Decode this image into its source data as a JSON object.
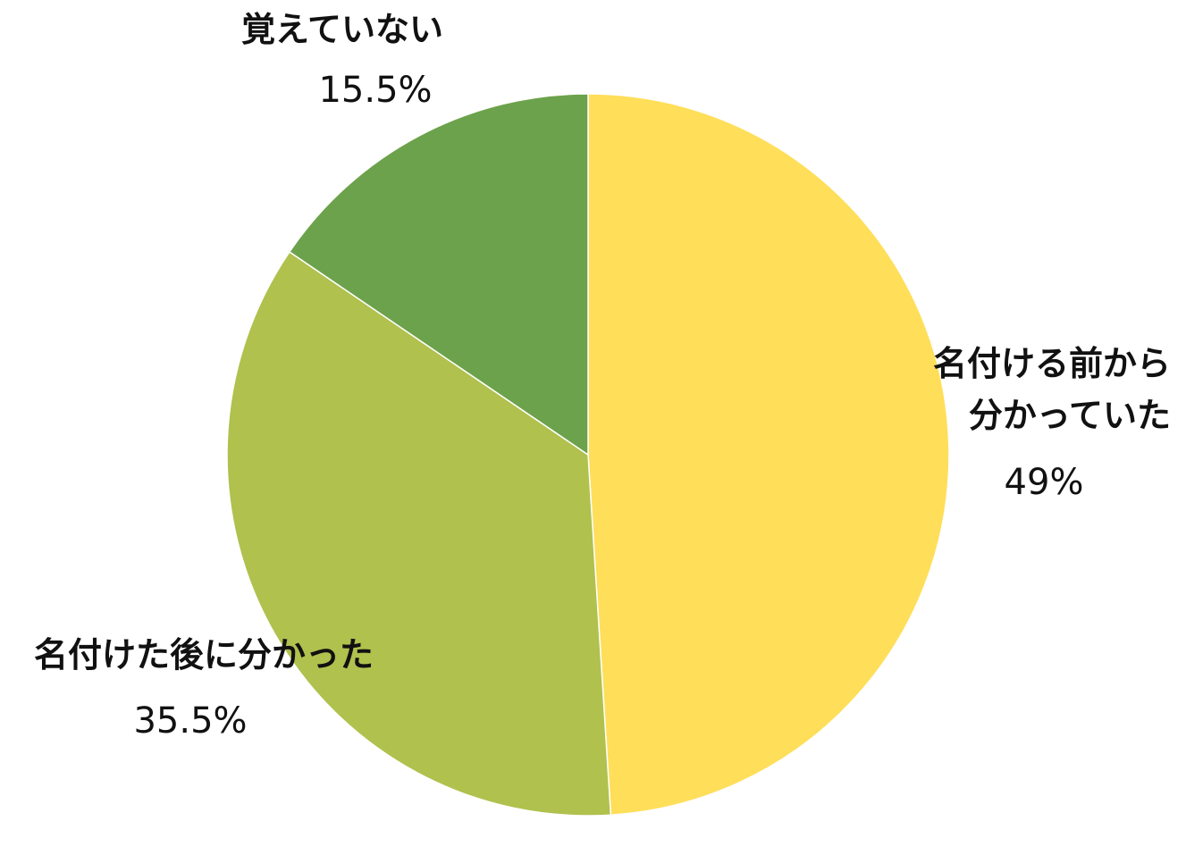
{
  "chart_data": {
    "type": "pie",
    "start_angle": "12 o'clock",
    "direction": "clockwise",
    "slices": [
      {
        "label_lines": [
          "名付ける前から",
          "分かっていた"
        ],
        "value": 49,
        "value_text": "49%",
        "color": "#FFDE59"
      },
      {
        "label_lines": [
          "名付けた後に分かった"
        ],
        "value": 35.5,
        "value_text": "35.5%",
        "color": "#B0C14E"
      },
      {
        "label_lines": [
          "覚えていない"
        ],
        "value": 15.5,
        "value_text": "15.5%",
        "color": "#6CA24B"
      }
    ]
  }
}
